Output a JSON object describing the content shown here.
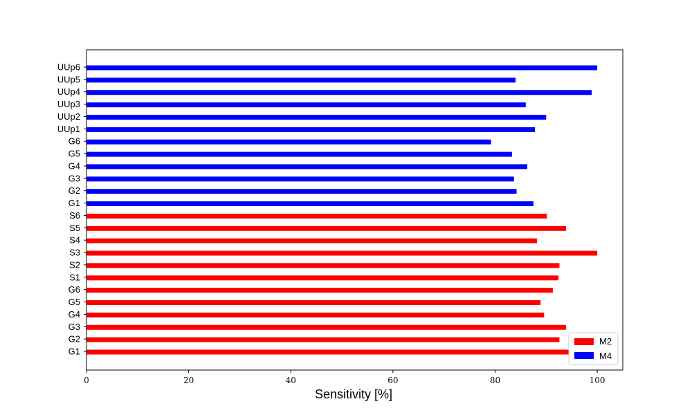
{
  "chart_data": {
    "type": "bar",
    "orientation": "horizontal",
    "categories": [
      "G1",
      "G2",
      "G3",
      "G4",
      "G5",
      "G6",
      "S1",
      "S2",
      "S3",
      "S4",
      "S5",
      "S6",
      "G1",
      "G2",
      "G3",
      "G4",
      "G5",
      "G6",
      "UUp1",
      "UUp2",
      "UUp3",
      "UUp4",
      "UUp5",
      "UUp6"
    ],
    "series": [
      {
        "name": "M2",
        "color": "#ff0000",
        "values": [
          94.4,
          92.6,
          93.9,
          89.6,
          88.9,
          91.3,
          92.4,
          92.6,
          100,
          88.2,
          93.9,
          90.1,
          null,
          null,
          null,
          null,
          null,
          null,
          null,
          null,
          null,
          null,
          null,
          null
        ]
      },
      {
        "name": "M4",
        "color": "#0000ff",
        "values": [
          null,
          null,
          null,
          null,
          null,
          null,
          null,
          null,
          null,
          null,
          null,
          null,
          87.5,
          84.2,
          83.7,
          86.3,
          83.3,
          79.2,
          87.8,
          90.0,
          86.0,
          98.9,
          84.0,
          100
        ]
      }
    ],
    "xlabel": "Sensitivity [%]",
    "xlim": [
      0,
      105
    ],
    "xticks": [
      "0",
      "20",
      "40",
      "60",
      "80",
      "100"
    ],
    "grid": false,
    "legend_placement": "lower-right"
  }
}
